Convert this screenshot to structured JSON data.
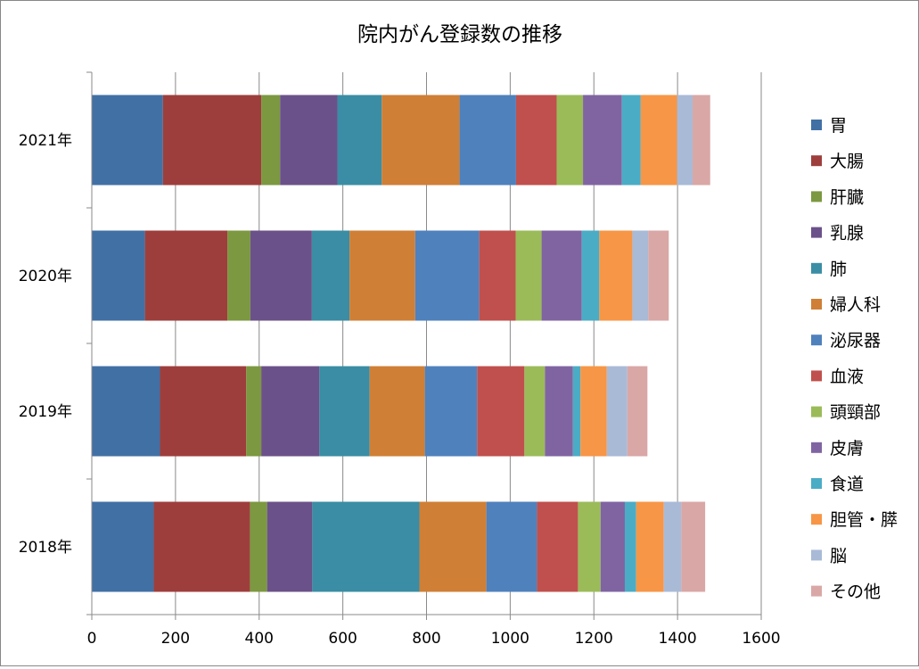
{
  "chart_data": {
    "type": "bar",
    "orientation": "horizontal",
    "stacked": true,
    "title": "院内がん登録数の推移",
    "xlabel": "",
    "ylabel": "",
    "xlim": [
      0,
      1600
    ],
    "x_ticks": [
      0,
      200,
      400,
      600,
      800,
      1000,
      1200,
      1400,
      1600
    ],
    "grid": "vertical",
    "legend_position": "right",
    "categories": [
      "2018年",
      "2019年",
      "2020年",
      "2021年"
    ],
    "series": [
      {
        "name": "胃",
        "color": "#4170A5",
        "values": [
          148,
          163,
          127,
          170
        ]
      },
      {
        "name": "大腸",
        "color": "#9E3E3C",
        "values": [
          230,
          206,
          197,
          235
        ]
      },
      {
        "name": "肝臓",
        "color": "#7C9840",
        "values": [
          41,
          36,
          55,
          45
        ]
      },
      {
        "name": "乳腺",
        "color": "#6B5189",
        "values": [
          108,
          139,
          147,
          137
        ]
      },
      {
        "name": "肺",
        "color": "#3A8DA4",
        "values": [
          256,
          120,
          90,
          106
        ]
      },
      {
        "name": "婦人科",
        "color": "#CF7F36",
        "values": [
          160,
          132,
          157,
          186
        ]
      },
      {
        "name": "泌尿器",
        "color": "#4F81BD",
        "values": [
          121,
          125,
          153,
          135
        ]
      },
      {
        "name": "血液",
        "color": "#C0504D",
        "values": [
          98,
          113,
          87,
          97
        ]
      },
      {
        "name": "頭頸部",
        "color": "#9BBB59",
        "values": [
          54,
          49,
          62,
          63
        ]
      },
      {
        "name": "皮膚",
        "color": "#8064A2",
        "values": [
          58,
          67,
          96,
          93
        ]
      },
      {
        "name": "食道",
        "color": "#4BACC6",
        "values": [
          27,
          18,
          42,
          45
        ]
      },
      {
        "name": "胆管・膵",
        "color": "#F79646",
        "values": [
          66,
          63,
          79,
          87
        ]
      },
      {
        "name": "脳",
        "color": "#A9BAD7",
        "values": [
          42,
          49,
          38,
          37
        ]
      },
      {
        "name": "その他",
        "color": "#D9A7A6",
        "values": [
          57,
          48,
          49,
          42
        ]
      }
    ]
  }
}
